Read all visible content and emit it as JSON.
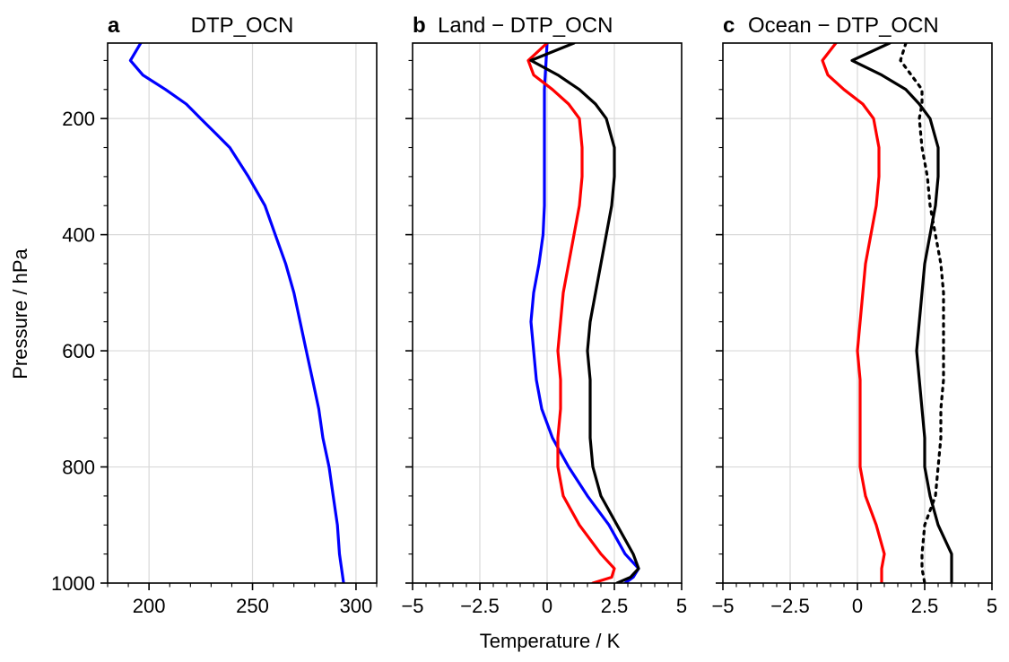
{
  "figure": {
    "ylabel": "Pressure / hPa",
    "shared_xlabel": "Temperature / K"
  },
  "chart_data": [
    {
      "type": "line",
      "letter": "a",
      "title": "DTP_OCN",
      "xlim": [
        180,
        310
      ],
      "ylim": [
        1000,
        70
      ],
      "y_inverted": true,
      "xticks": [
        200,
        250,
        300
      ],
      "xtick_labels": [
        "200",
        "250",
        "300"
      ],
      "xminor": [
        180,
        190,
        210,
        220,
        230,
        240,
        260,
        270,
        280,
        290,
        310
      ],
      "yticks": [
        200,
        400,
        600,
        800,
        1000
      ],
      "ytick_labels": [
        "200",
        "400",
        "600",
        "800",
        "1000"
      ],
      "yminor": [
        100,
        150,
        250,
        300,
        350,
        450,
        500,
        550,
        650,
        700,
        750,
        850,
        900,
        950
      ],
      "show_ytick_labels": true,
      "grid": true,
      "series": [
        {
          "name": "DTP_OCN",
          "color": "#0000ff",
          "dash": "solid",
          "points": [
            [
              196,
              70
            ],
            [
              191,
              100
            ],
            [
              197,
              125
            ],
            [
              208,
              150
            ],
            [
              218,
              175
            ],
            [
              225,
              200
            ],
            [
              232,
              225
            ],
            [
              239,
              250
            ],
            [
              248,
              300
            ],
            [
              256,
              350
            ],
            [
              261,
              400
            ],
            [
              266,
              450
            ],
            [
              270,
              500
            ],
            [
              273,
              550
            ],
            [
              276,
              600
            ],
            [
              279,
              650
            ],
            [
              282,
              700
            ],
            [
              284,
              750
            ],
            [
              287,
              800
            ],
            [
              289,
              850
            ],
            [
              291,
              900
            ],
            [
              292,
              950
            ],
            [
              294,
              1000
            ]
          ]
        }
      ]
    },
    {
      "type": "line",
      "letter": "b",
      "title": "Land − DTP_OCN",
      "xlim": [
        -5,
        5
      ],
      "ylim": [
        1000,
        70
      ],
      "y_inverted": true,
      "xticks": [
        -5,
        -2.5,
        0,
        2.5,
        5
      ],
      "xtick_labels": [
        "−5",
        "−2.5",
        "0",
        "2.5",
        "5"
      ],
      "xminor": [
        -4.5,
        -4,
        -3.5,
        -3,
        -2,
        -1.5,
        -1,
        -0.5,
        0.5,
        1,
        1.5,
        2,
        3,
        3.5,
        4,
        4.5
      ],
      "yticks": [
        200,
        400,
        600,
        800,
        1000
      ],
      "ytick_labels": [
        "200",
        "400",
        "600",
        "800",
        "1000"
      ],
      "yminor": [
        100,
        150,
        250,
        300,
        350,
        450,
        500,
        550,
        650,
        700,
        750,
        850,
        900,
        950
      ],
      "show_ytick_labels": false,
      "grid": true,
      "series": [
        {
          "name": "blue",
          "color": "#0000ff",
          "dash": "solid",
          "points": [
            [
              0.0,
              70
            ],
            [
              -0.1,
              150
            ],
            [
              -0.1,
              200
            ],
            [
              -0.1,
              250
            ],
            [
              -0.1,
              300
            ],
            [
              -0.1,
              350
            ],
            [
              -0.15,
              400
            ],
            [
              -0.3,
              450
            ],
            [
              -0.5,
              500
            ],
            [
              -0.6,
              550
            ],
            [
              -0.5,
              600
            ],
            [
              -0.4,
              650
            ],
            [
              -0.2,
              700
            ],
            [
              0.2,
              750
            ],
            [
              0.8,
              800
            ],
            [
              1.5,
              850
            ],
            [
              2.3,
              900
            ],
            [
              2.9,
              950
            ],
            [
              3.4,
              975
            ],
            [
              3.2,
              990
            ],
            [
              2.9,
              1000
            ]
          ]
        },
        {
          "name": "red",
          "color": "#ff0000",
          "dash": "solid",
          "points": [
            [
              0.0,
              70
            ],
            [
              -0.7,
              100
            ],
            [
              -0.5,
              125
            ],
            [
              0.2,
              150
            ],
            [
              0.8,
              175
            ],
            [
              1.2,
              200
            ],
            [
              1.3,
              250
            ],
            [
              1.3,
              300
            ],
            [
              1.2,
              350
            ],
            [
              1.0,
              400
            ],
            [
              0.8,
              450
            ],
            [
              0.6,
              500
            ],
            [
              0.5,
              550
            ],
            [
              0.4,
              600
            ],
            [
              0.5,
              650
            ],
            [
              0.5,
              700
            ],
            [
              0.4,
              750
            ],
            [
              0.4,
              800
            ],
            [
              0.6,
              850
            ],
            [
              1.2,
              900
            ],
            [
              2.0,
              950
            ],
            [
              2.5,
              975
            ],
            [
              2.4,
              990
            ],
            [
              1.7,
              1000
            ]
          ]
        },
        {
          "name": "black",
          "color": "#000000",
          "dash": "solid",
          "points": [
            [
              1.0,
              70
            ],
            [
              -0.6,
              100
            ],
            [
              0.4,
              125
            ],
            [
              1.2,
              150
            ],
            [
              1.8,
              175
            ],
            [
              2.2,
              200
            ],
            [
              2.5,
              250
            ],
            [
              2.5,
              300
            ],
            [
              2.4,
              350
            ],
            [
              2.2,
              400
            ],
            [
              2.0,
              450
            ],
            [
              1.8,
              500
            ],
            [
              1.6,
              550
            ],
            [
              1.5,
              600
            ],
            [
              1.6,
              650
            ],
            [
              1.6,
              700
            ],
            [
              1.6,
              750
            ],
            [
              1.7,
              800
            ],
            [
              2.0,
              850
            ],
            [
              2.6,
              900
            ],
            [
              3.2,
              950
            ],
            [
              3.4,
              975
            ],
            [
              3.1,
              990
            ],
            [
              2.6,
              1000
            ]
          ]
        }
      ]
    },
    {
      "type": "line",
      "letter": "c",
      "title": "Ocean − DTP_OCN",
      "xlim": [
        -5,
        5
      ],
      "ylim": [
        1000,
        70
      ],
      "y_inverted": true,
      "xticks": [
        -5,
        -2.5,
        0,
        2.5,
        5
      ],
      "xtick_labels": [
        "−5",
        "−2.5",
        "0",
        "2.5",
        "5"
      ],
      "xminor": [
        -4.5,
        -4,
        -3.5,
        -3,
        -2,
        -1.5,
        -1,
        -0.5,
        0.5,
        1,
        1.5,
        2,
        3,
        3.5,
        4,
        4.5
      ],
      "yticks": [
        200,
        400,
        600,
        800,
        1000
      ],
      "ytick_labels": [
        "200",
        "400",
        "600",
        "800",
        "1000"
      ],
      "yminor": [
        100,
        150,
        250,
        300,
        350,
        450,
        500,
        550,
        650,
        700,
        750,
        850,
        900,
        950
      ],
      "show_ytick_labels": false,
      "grid": true,
      "series": [
        {
          "name": "red",
          "color": "#ff0000",
          "dash": "solid",
          "points": [
            [
              -0.8,
              70
            ],
            [
              -1.3,
              100
            ],
            [
              -1.1,
              125
            ],
            [
              -0.5,
              150
            ],
            [
              0.2,
              175
            ],
            [
              0.6,
              200
            ],
            [
              0.8,
              250
            ],
            [
              0.8,
              300
            ],
            [
              0.7,
              350
            ],
            [
              0.5,
              400
            ],
            [
              0.3,
              450
            ],
            [
              0.2,
              500
            ],
            [
              0.1,
              550
            ],
            [
              0.0,
              600
            ],
            [
              0.1,
              650
            ],
            [
              0.1,
              700
            ],
            [
              0.1,
              750
            ],
            [
              0.1,
              800
            ],
            [
              0.3,
              850
            ],
            [
              0.7,
              900
            ],
            [
              1.0,
              950
            ],
            [
              0.9,
              975
            ],
            [
              0.9,
              1000
            ]
          ]
        },
        {
          "name": "black",
          "color": "#000000",
          "dash": "solid",
          "points": [
            [
              1.2,
              70
            ],
            [
              -0.2,
              100
            ],
            [
              0.9,
              125
            ],
            [
              1.8,
              150
            ],
            [
              2.3,
              175
            ],
            [
              2.7,
              200
            ],
            [
              3.0,
              250
            ],
            [
              3.0,
              300
            ],
            [
              2.9,
              350
            ],
            [
              2.7,
              400
            ],
            [
              2.5,
              450
            ],
            [
              2.4,
              500
            ],
            [
              2.3,
              550
            ],
            [
              2.2,
              600
            ],
            [
              2.3,
              650
            ],
            [
              2.4,
              700
            ],
            [
              2.5,
              750
            ],
            [
              2.5,
              800
            ],
            [
              2.7,
              850
            ],
            [
              3.0,
              900
            ],
            [
              3.5,
              950
            ],
            [
              3.5,
              975
            ],
            [
              3.5,
              1000
            ]
          ]
        },
        {
          "name": "black-dotted",
          "color": "#000000",
          "dash": "dotted",
          "points": [
            [
              1.8,
              70
            ],
            [
              1.6,
              100
            ],
            [
              2.0,
              125
            ],
            [
              2.4,
              150
            ],
            [
              2.4,
              175
            ],
            [
              2.3,
              200
            ],
            [
              2.4,
              250
            ],
            [
              2.6,
              300
            ],
            [
              2.7,
              350
            ],
            [
              2.9,
              400
            ],
            [
              3.1,
              450
            ],
            [
              3.2,
              500
            ],
            [
              3.2,
              550
            ],
            [
              3.2,
              600
            ],
            [
              3.2,
              650
            ],
            [
              3.1,
              700
            ],
            [
              3.1,
              750
            ],
            [
              3.0,
              800
            ],
            [
              2.9,
              850
            ],
            [
              2.5,
              900
            ],
            [
              2.4,
              950
            ],
            [
              2.4,
              975
            ],
            [
              2.5,
              1000
            ]
          ]
        }
      ]
    }
  ]
}
